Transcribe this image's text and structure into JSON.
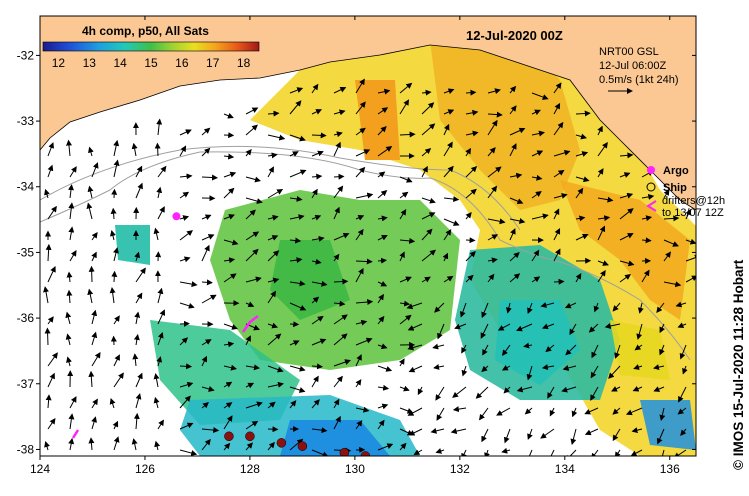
{
  "title": "12-Jul-2020 00Z",
  "colorbar": {
    "label": "4h comp, p50, All Sats",
    "ticks": [
      "12",
      "13",
      "14",
      "15",
      "16",
      "17",
      "18"
    ],
    "min": 11.5,
    "max": 18.5,
    "colors": [
      "#1b1b8c",
      "#1f4fd6",
      "#1f9fe0",
      "#22c8b8",
      "#3fbf4a",
      "#9fd233",
      "#e8e020",
      "#f5a21c",
      "#e8581a",
      "#a01818"
    ]
  },
  "current_legend": {
    "model": "NRT00 GSL",
    "time": "12-Jul 06:00Z",
    "scale": "0.5m/s (1kt 24h)"
  },
  "obs_legend": {
    "argo": "Argo",
    "ship": "Ship",
    "drifters_line1": "drifters@12h",
    "drifters_line2": "to 13/07 12Z"
  },
  "x_axis": {
    "ticks": [
      "124",
      "126",
      "128",
      "130",
      "132",
      "134",
      "136"
    ],
    "range": [
      124,
      136.5
    ]
  },
  "y_axis": {
    "ticks": [
      "-32",
      "-33",
      "-34",
      "-35",
      "-36",
      "-37",
      "-38"
    ],
    "range": [
      -38.1,
      -31.4
    ]
  },
  "side_label": "© IMOS 15-Jul-2020 11:28 Hobart",
  "colors": {
    "land": "#fbc792",
    "sea": "#ffffff",
    "argo": "#ff22ff",
    "ship_dot": "#8b1010",
    "isobath": "#a0a0a0"
  },
  "ship_positions": [
    {
      "lon": 127.6,
      "lat": -37.8
    },
    {
      "lon": 128.0,
      "lat": -37.8
    },
    {
      "lon": 128.6,
      "lat": -37.9
    },
    {
      "lon": 129.0,
      "lat": -37.95
    },
    {
      "lon": 129.8,
      "lat": -38.05
    },
    {
      "lon": 130.2,
      "lat": -38.1
    }
  ],
  "argo_positions": [
    {
      "lon": 126.6,
      "lat": -34.45
    }
  ]
}
